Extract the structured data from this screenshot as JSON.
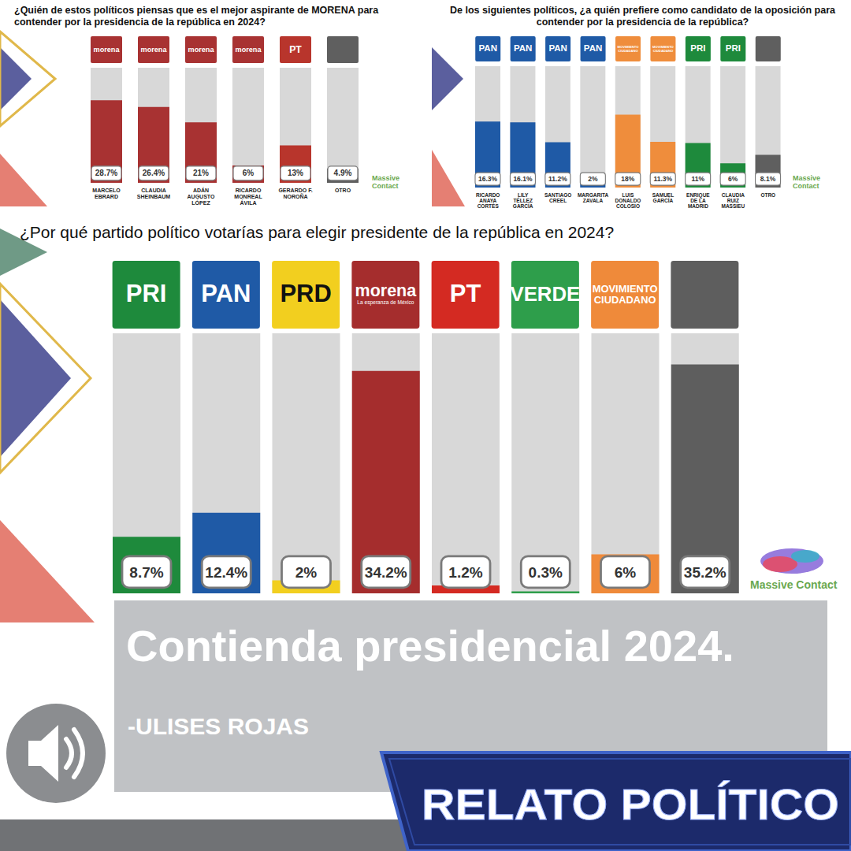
{
  "chart_data": [
    {
      "type": "bar",
      "title": "¿Quién de estos políticos piensas que es el mejor aspirante de MORENA para contender por la presidencia de la república en 2024?",
      "categories": [
        "MARCELO EBRARD",
        "CLAUDIA SHEINBAUM",
        "ADÁN AUGUSTO LÓPEZ",
        "RICARDO MONREAL ÁVILA",
        "GERARDO F. NOROÑA",
        "OTRO"
      ],
      "logos": [
        "morena",
        "morena",
        "morena",
        "morena",
        "PT",
        null
      ],
      "values": [
        28.7,
        26.4,
        21,
        6,
        13,
        4.9
      ],
      "value_labels": [
        "28.7%",
        "26.4%",
        "21%",
        "6%",
        "13%",
        "4.9%"
      ],
      "colors": [
        "#a83232",
        "#a83232",
        "#a83232",
        "#a83232",
        "#b8352c",
        "#5f5f5f"
      ],
      "ylim": [
        0,
        40
      ],
      "grid": false,
      "tick_labels": "x",
      "data_labels": true,
      "source": "Massive Contact"
    },
    {
      "type": "bar",
      "title": "De los siguientes políticos, ¿a quién prefiere como candidato de la oposición para contender por la presidencia de la república?",
      "categories": [
        "RICARDO ANAYA CORTÉS",
        "LILY TÉLLEZ GARCÍA",
        "SANTIAGO CREEL",
        "MARGARITA ZAVALA",
        "LUIS DONALDO COLOSIO",
        "SAMUEL GARCÍA",
        "ENRIQUE DE LA MADRID",
        "CLAUDIA RUIZ MASSIEU",
        "OTRO"
      ],
      "logos": [
        "PAN",
        "PAN",
        "PAN",
        "PAN",
        "MOVIMIENTO CIUDADANO",
        "MOVIMIENTO CIUDADANO",
        "PRI",
        "PRI",
        null
      ],
      "values": [
        16.3,
        16.1,
        11.2,
        2,
        18,
        11.3,
        11,
        6,
        8.1
      ],
      "value_labels": [
        "16.3%",
        "16.1%",
        "11.2%",
        "2%",
        "18%",
        "11.3%",
        "11%",
        "6%",
        "8.1%"
      ],
      "colors": [
        "#1f5aa6",
        "#1f5aa6",
        "#1f5aa6",
        "#1f5aa6",
        "#ef8d3c",
        "#ef8d3c",
        "#1e8a3c",
        "#1e8a3c",
        "#5f5f5f"
      ],
      "ylim": [
        0,
        30
      ],
      "grid": false,
      "tick_labels": "x",
      "data_labels": true,
      "source": "Massive Contact"
    },
    {
      "type": "bar",
      "title": "¿Por qué partido político votarías para elegir presidente de la república en 2024?",
      "categories": [
        "PRI",
        "PAN",
        "PRD",
        "morena",
        "PT",
        "VERDE",
        "MOVIMIENTO CIUDADANO",
        null
      ],
      "logo_subtitles": [
        null,
        null,
        null,
        "La esperanza de México",
        null,
        null,
        null,
        null
      ],
      "values": [
        8.7,
        12.4,
        2,
        34.2,
        1.2,
        0.3,
        6,
        35.2
      ],
      "value_labels": [
        "8.7%",
        "12.4%",
        "2%",
        "34.2%",
        "1.2%",
        "0.3%",
        "6%",
        "35.2%"
      ],
      "colors": [
        "#1e8a3c",
        "#1f5aa6",
        "#f2cf1f",
        "#a52d2d",
        "#d42a22",
        "#2e9e4b",
        "#ef8a3a",
        "#5e5e5e"
      ],
      "ylim": [
        0,
        40
      ],
      "grid": false,
      "tick_labels": "x",
      "data_labels": true,
      "source": "Massive Contact"
    }
  ],
  "banner": {
    "title": "Contienda presidencial 2024.",
    "author": "-ULISES ROJAS",
    "program": "RELATO POLÍTICO"
  }
}
